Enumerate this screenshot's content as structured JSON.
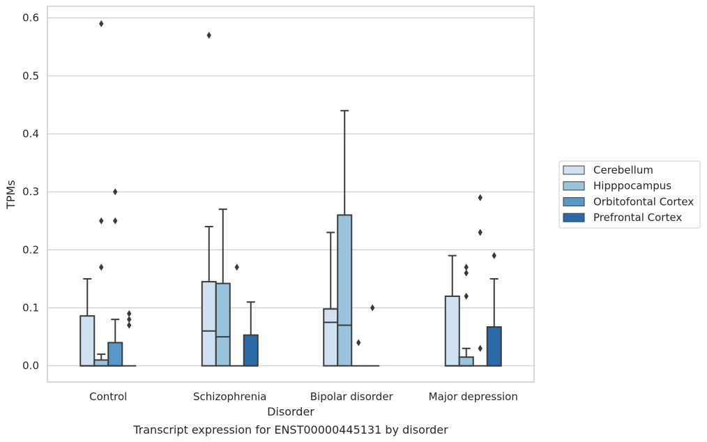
{
  "chart_data": {
    "type": "box",
    "caption": "Transcript expression for ENST00000445131 by disorder",
    "xlabel": "Disorder",
    "ylabel": "TPMs",
    "ylim": [
      -0.028,
      0.62
    ],
    "yticks": [
      0.0,
      0.1,
      0.2,
      0.3,
      0.4,
      0.5,
      0.6
    ],
    "ytick_labels": [
      "0.0",
      "0.1",
      "0.2",
      "0.3",
      "0.4",
      "0.5",
      "0.6"
    ],
    "grid": true,
    "legend_position": "right",
    "categories": [
      "Control",
      "Schizophrenia",
      "Bipolar disorder",
      "Major depression"
    ],
    "series": [
      {
        "name": "Cerebellum",
        "color": "#d0e1f2",
        "boxes": [
          {
            "q1": 0.0,
            "median": 0.0,
            "q3": 0.086,
            "whislo": 0.0,
            "whishi": 0.15,
            "fliers": []
          },
          {
            "q1": 0.0,
            "median": 0.06,
            "q3": 0.145,
            "whislo": 0.0,
            "whishi": 0.24,
            "fliers": [
              0.57
            ]
          },
          {
            "q1": 0.0,
            "median": 0.075,
            "q3": 0.098,
            "whislo": 0.0,
            "whishi": 0.23,
            "fliers": []
          },
          {
            "q1": 0.0,
            "median": 0.0,
            "q3": 0.12,
            "whislo": 0.0,
            "whishi": 0.19,
            "fliers": []
          }
        ]
      },
      {
        "name": "Hipppocampus",
        "color": "#9ac3de",
        "boxes": [
          {
            "q1": 0.0,
            "median": 0.0,
            "q3": 0.01,
            "whislo": 0.0,
            "whishi": 0.02,
            "fliers": [
              0.59,
              0.25,
              0.17
            ]
          },
          {
            "q1": 0.0,
            "median": 0.05,
            "q3": 0.142,
            "whislo": 0.0,
            "whishi": 0.27,
            "fliers": []
          },
          {
            "q1": 0.0,
            "median": 0.07,
            "q3": 0.26,
            "whislo": 0.0,
            "whishi": 0.44,
            "fliers": []
          },
          {
            "q1": 0.0,
            "median": 0.0,
            "q3": 0.015,
            "whislo": 0.0,
            "whishi": 0.03,
            "fliers": [
              0.17,
              0.16,
              0.12
            ]
          }
        ]
      },
      {
        "name": "Orbitofontal Cortex",
        "color": "#5898c9",
        "boxes": [
          {
            "q1": 0.0,
            "median": 0.0,
            "q3": 0.04,
            "whislo": 0.0,
            "whishi": 0.08,
            "fliers": [
              0.3,
              0.25
            ]
          },
          {
            "q1": 0.0,
            "median": 0.0,
            "q3": 0.0,
            "whislo": 0.0,
            "whishi": 0.0,
            "fliers": [
              0.17
            ]
          },
          {
            "q1": 0.0,
            "median": 0.0,
            "q3": 0.0,
            "whislo": 0.0,
            "whishi": 0.0,
            "fliers": [
              0.04
            ]
          },
          {
            "q1": 0.0,
            "median": 0.0,
            "q3": 0.0,
            "whislo": 0.0,
            "whishi": 0.0,
            "fliers": [
              0.29,
              0.23,
              0.03
            ]
          }
        ]
      },
      {
        "name": "Prefrontal Cortex",
        "color": "#2b6aa8",
        "boxes": [
          {
            "q1": 0.0,
            "median": 0.0,
            "q3": 0.0,
            "whislo": 0.0,
            "whishi": 0.0,
            "fliers": [
              0.09,
              0.08,
              0.07
            ]
          },
          {
            "q1": 0.0,
            "median": 0.0,
            "q3": 0.053,
            "whislo": 0.0,
            "whishi": 0.11,
            "fliers": []
          },
          {
            "q1": 0.0,
            "median": 0.0,
            "q3": 0.0,
            "whislo": 0.0,
            "whishi": 0.0,
            "fliers": [
              0.1
            ]
          },
          {
            "q1": 0.0,
            "median": 0.0,
            "q3": 0.067,
            "whislo": 0.0,
            "whishi": 0.15,
            "fliers": [
              0.19
            ]
          }
        ]
      }
    ]
  }
}
